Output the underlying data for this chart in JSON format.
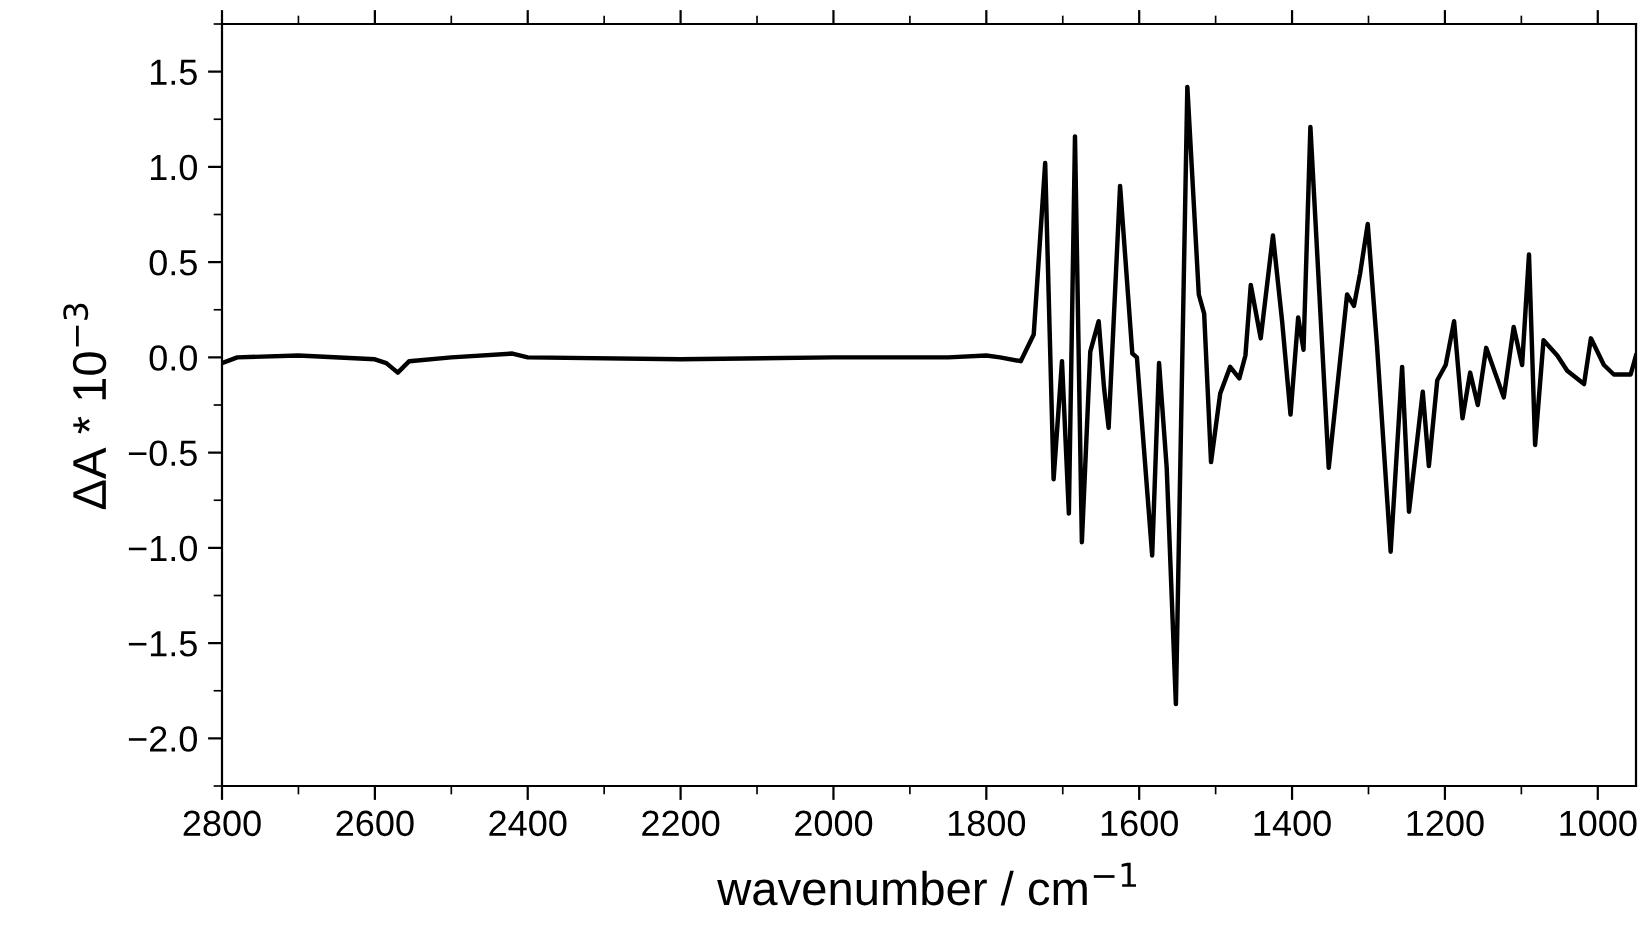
{
  "chart_data": {
    "type": "line",
    "xlabel": "wavenumber / cm$^{−1}$",
    "ylabel": "ΔA * 10$^{−3}$",
    "xlim": [
      2800,
      950
    ],
    "ylim": [
      -2.25,
      1.75
    ],
    "xticks": [
      2800,
      2600,
      2400,
      2200,
      2000,
      1800,
      1600,
      1400,
      1200,
      1000
    ],
    "yticks": [
      {
        "value": -2.0,
        "label": "−2.0"
      },
      {
        "value": -1.5,
        "label": "−1.5"
      },
      {
        "value": -1.0,
        "label": "−1.0"
      },
      {
        "value": -0.5,
        "label": "−0.5"
      },
      {
        "value": 0.0,
        "label": "0.0"
      },
      {
        "value": 0.5,
        "label": "0.5"
      },
      {
        "value": 1.0,
        "label": "1.0"
      },
      {
        "value": 1.5,
        "label": "1.5"
      }
    ],
    "marker": "none",
    "line_style": "solid",
    "series": [
      {
        "color": "#000000",
        "x": [
          2800,
          2780,
          2700,
          2600,
          2585,
          2570,
          2555,
          2500,
          2420,
          2400,
          2200,
          2000,
          1850,
          1800,
          1782,
          1755,
          1738,
          1723,
          1712,
          1701,
          1692,
          1684,
          1675,
          1664,
          1653,
          1646,
          1640,
          1625,
          1609,
          1603,
          1583,
          1574,
          1564,
          1552,
          1537,
          1522,
          1515,
          1506,
          1494,
          1481,
          1469,
          1461,
          1454,
          1441,
          1425,
          1413,
          1402,
          1392,
          1385,
          1376,
          1352,
          1328,
          1319,
          1311,
          1301,
          1289,
          1271,
          1256,
          1247,
          1229,
          1221,
          1210,
          1199,
          1188,
          1177,
          1167,
          1157,
          1146,
          1123,
          1110,
          1099,
          1090,
          1082,
          1071,
          1053,
          1040,
          1018,
          1009,
          992,
          979,
          957,
          950
        ],
        "values": [
          -0.03,
          0.0,
          0.01,
          -0.01,
          -0.03,
          -0.08,
          -0.02,
          0.0,
          0.02,
          0.0,
          -0.01,
          0.0,
          0.0,
          0.01,
          0.0,
          -0.02,
          0.12,
          1.02,
          -0.64,
          -0.02,
          -0.82,
          1.16,
          -0.97,
          0.03,
          0.19,
          -0.16,
          -0.37,
          0.9,
          0.02,
          0.0,
          -1.04,
          -0.03,
          -0.58,
          -1.82,
          1.42,
          0.33,
          0.23,
          -0.55,
          -0.19,
          -0.05,
          -0.11,
          0.01,
          0.38,
          0.1,
          0.64,
          0.19,
          -0.3,
          0.21,
          0.04,
          1.21,
          -0.58,
          0.33,
          0.27,
          0.44,
          0.7,
          0.07,
          -1.02,
          -0.05,
          -0.81,
          -0.18,
          -0.57,
          -0.12,
          -0.04,
          0.19,
          -0.32,
          -0.08,
          -0.25,
          0.05,
          -0.21,
          0.16,
          -0.04,
          0.54,
          -0.46,
          0.09,
          0.01,
          -0.07,
          -0.14,
          0.1,
          -0.04,
          -0.09,
          -0.09,
          0.01
        ]
      }
    ]
  }
}
